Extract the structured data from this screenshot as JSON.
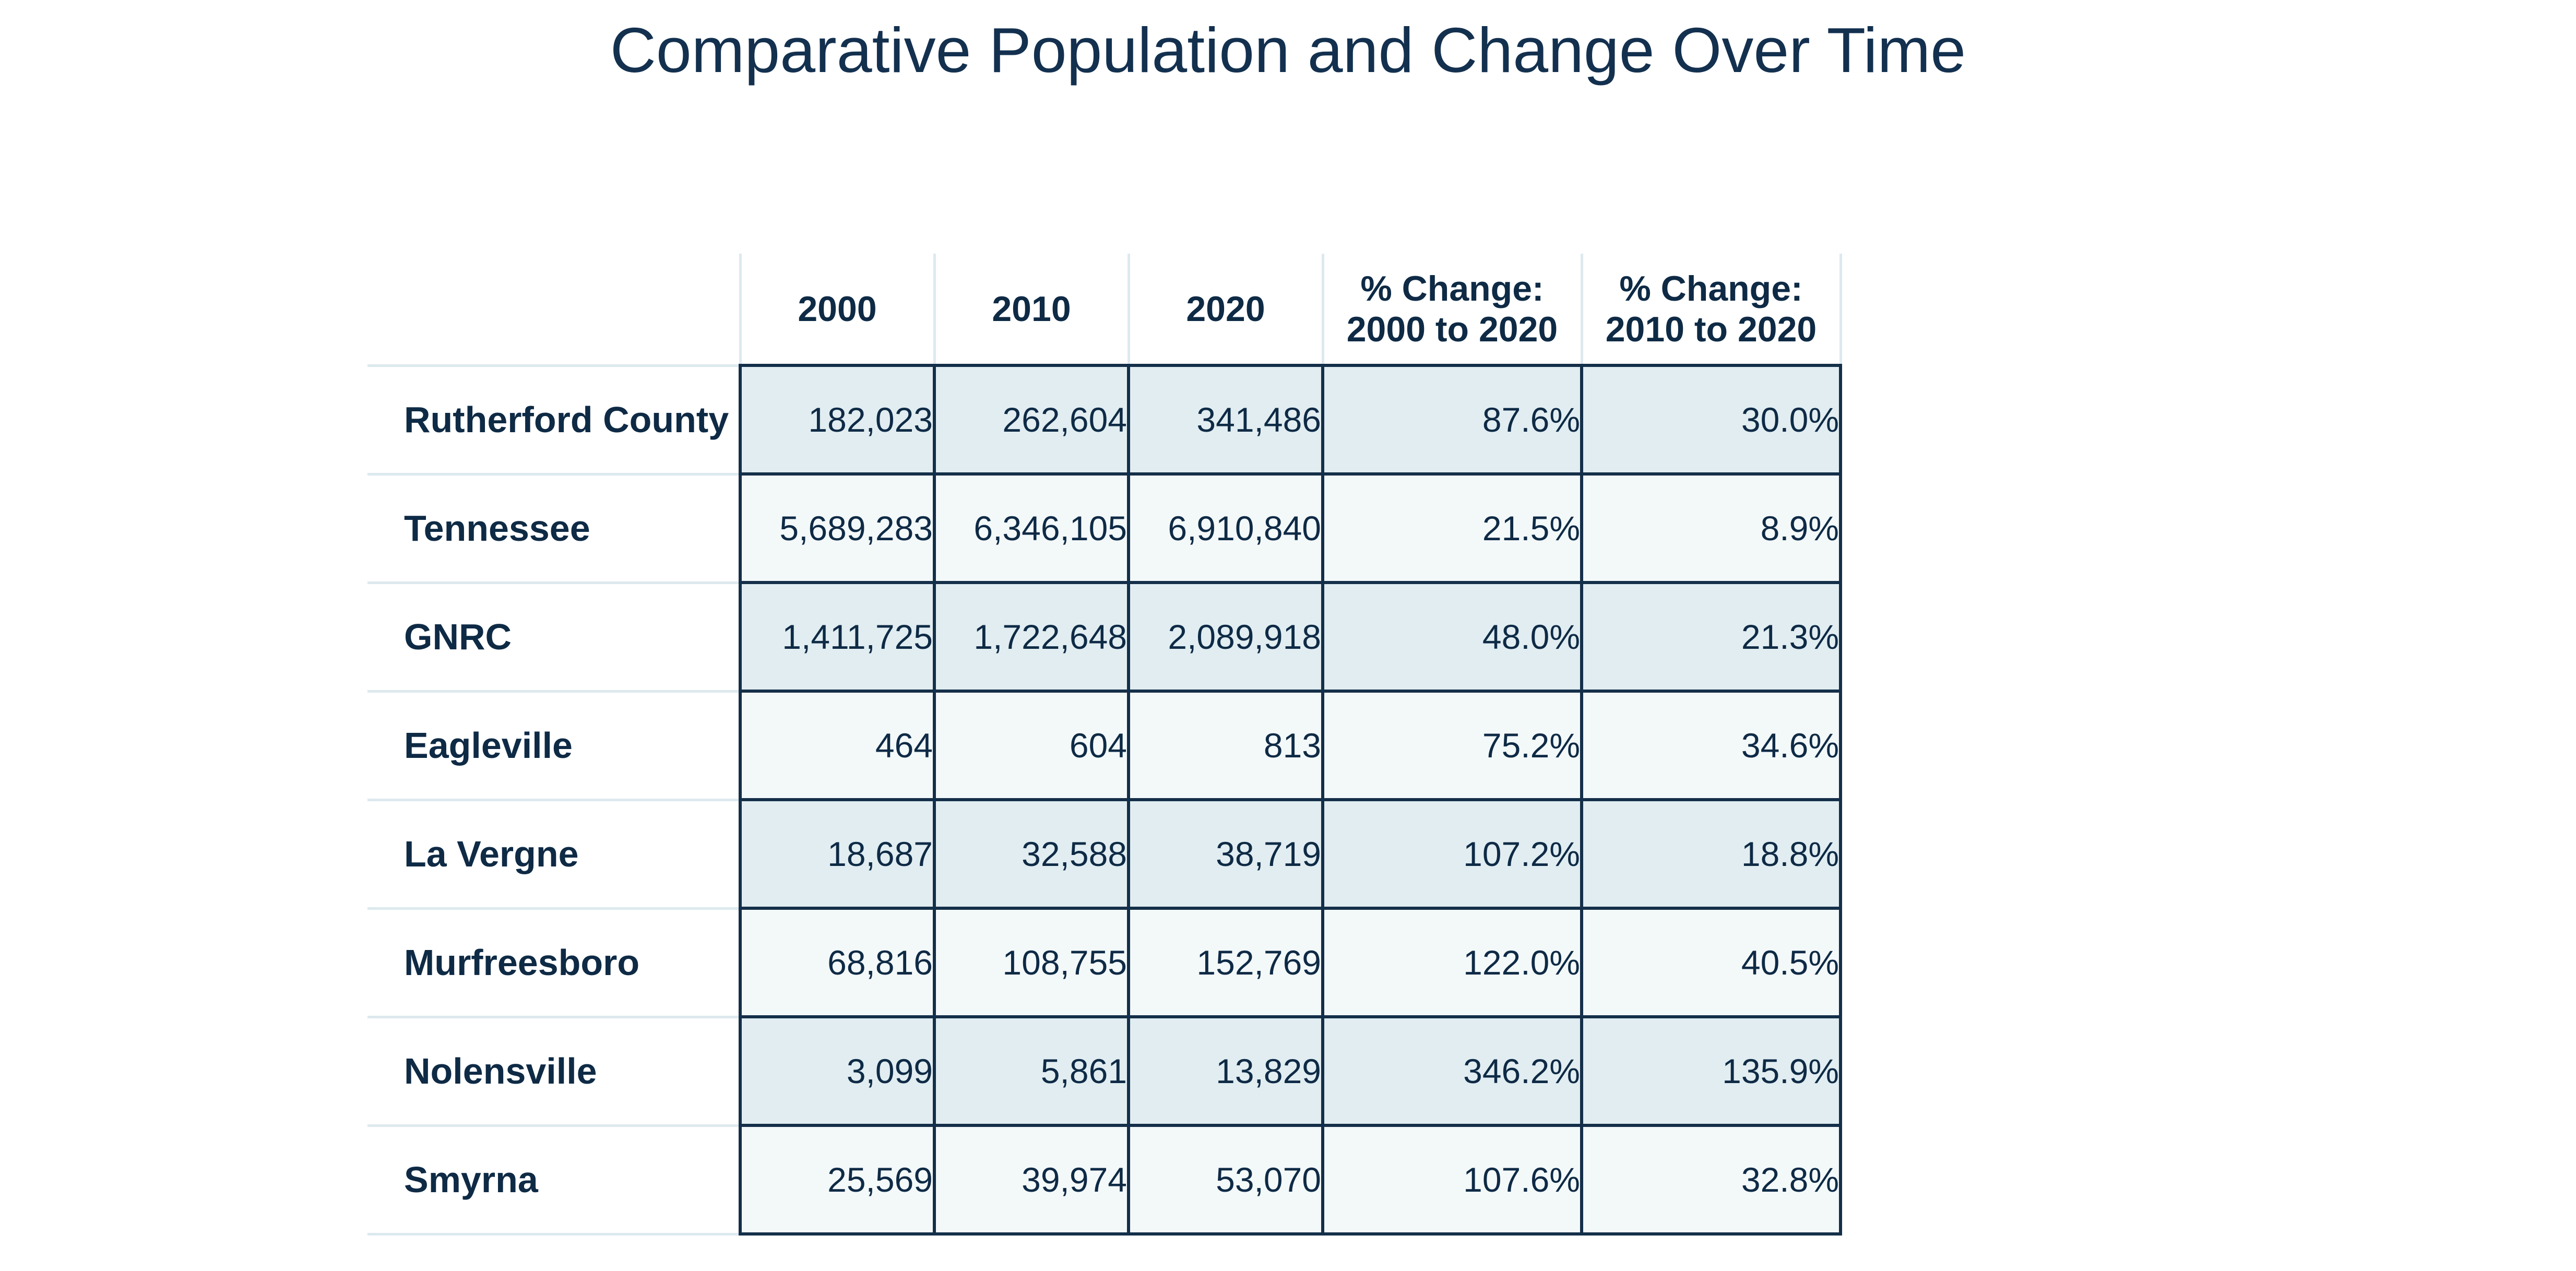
{
  "title": "Comparative Population and Change Over Time",
  "table": {
    "headers": [
      "2000",
      "2010",
      "2020",
      "% Change:\n2000 to 2020",
      "% Change:\n2010 to 2020"
    ],
    "rows": [
      {
        "name": "Rutherford County",
        "values": [
          "182,023",
          "262,604",
          "341,486",
          "87.6%",
          "30.0%"
        ]
      },
      {
        "name": "Tennessee",
        "values": [
          "5,689,283",
          "6,346,105",
          "6,910,840",
          "21.5%",
          "8.9%"
        ]
      },
      {
        "name": "GNRC",
        "values": [
          "1,411,725",
          "1,722,648",
          "2,089,918",
          "48.0%",
          "21.3%"
        ]
      },
      {
        "name": "Eagleville",
        "values": [
          "464",
          "604",
          "813",
          "75.2%",
          "34.6%"
        ]
      },
      {
        "name": "La Vergne",
        "values": [
          "18,687",
          "32,588",
          "38,719",
          "107.2%",
          "18.8%"
        ]
      },
      {
        "name": "Murfreesboro",
        "values": [
          "68,816",
          "108,755",
          "152,769",
          "122.0%",
          "40.5%"
        ]
      },
      {
        "name": "Nolensville",
        "values": [
          "3,099",
          "5,861",
          "13,829",
          "346.2%",
          "135.9%"
        ]
      },
      {
        "name": "Smyrna",
        "values": [
          "25,569",
          "39,974",
          "53,070",
          "107.6%",
          "32.8%"
        ]
      }
    ]
  },
  "colors": {
    "title": "#13304f",
    "text": "#0e2a45",
    "cell_border": "#142f49",
    "row_shade": "#e1edf1",
    "row_light": "#f3f8f9",
    "divider": "#dde9ef"
  }
}
